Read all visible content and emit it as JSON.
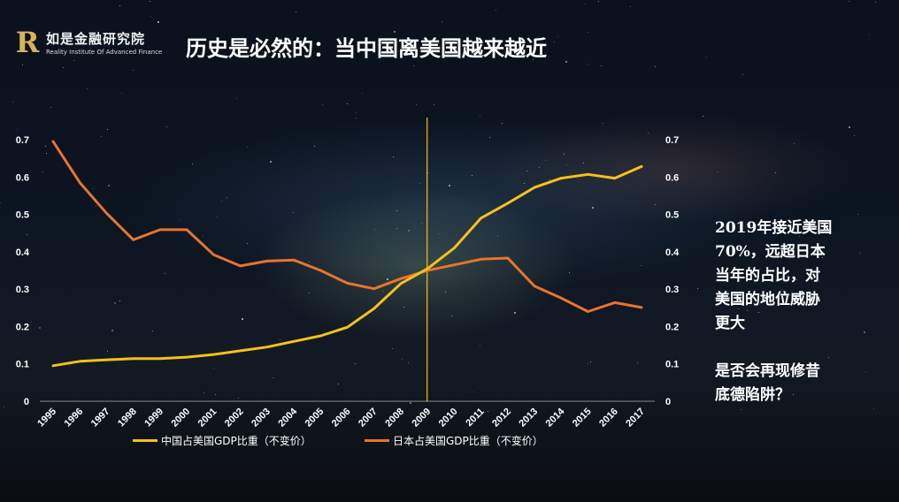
{
  "logo": {
    "mark": "R",
    "name_cn": "如是金融研究院",
    "name_en": "Reality Institute Of Advanced Finance"
  },
  "title": "历史是必然的：当中国离美国越来越近",
  "annotation": {
    "lines": [
      "2019年接近美国",
      "70%，远超日本",
      "当年的占比，对",
      "美国的地位威胁",
      "更大"
    ],
    "question_lines": [
      "是否会再现修昔",
      "底德陷阱？"
    ]
  },
  "chart_data": {
    "type": "line",
    "categories": [
      "1995",
      "1996",
      "1997",
      "1998",
      "1999",
      "2000",
      "2001",
      "2002",
      "2003",
      "2004",
      "2005",
      "2006",
      "2007",
      "2008",
      "2009",
      "2010",
      "2011",
      "2012",
      "2013",
      "2014",
      "2015",
      "2016",
      "2017"
    ],
    "series": [
      {
        "name": "中国占美国GDP比重（不变价）",
        "color": "#f5c11a",
        "values": [
          0.095,
          0.107,
          0.111,
          0.114,
          0.114,
          0.118,
          0.125,
          0.135,
          0.145,
          0.16,
          0.175,
          0.198,
          0.248,
          0.315,
          0.355,
          0.41,
          0.49,
          0.53,
          0.572,
          0.597,
          0.607,
          0.597,
          0.628
        ]
      },
      {
        "name": "日本占美国GDP比重（不变价）",
        "color": "#e8742c",
        "values": [
          0.695,
          0.585,
          0.503,
          0.432,
          0.459,
          0.459,
          0.392,
          0.362,
          0.375,
          0.378,
          0.35,
          0.316,
          0.301,
          0.328,
          0.35,
          0.365,
          0.38,
          0.383,
          0.308,
          0.276,
          0.24,
          0.264,
          0.251
        ]
      }
    ],
    "y_ticks": [
      "0",
      "0.1",
      "0.2",
      "0.3",
      "0.4",
      "0.5",
      "0.6",
      "0.7"
    ],
    "ylim": [
      0,
      0.7
    ],
    "marker_year": "2009",
    "marker_color": "#f5c11a",
    "grid": false,
    "legend_position": "bottom"
  }
}
